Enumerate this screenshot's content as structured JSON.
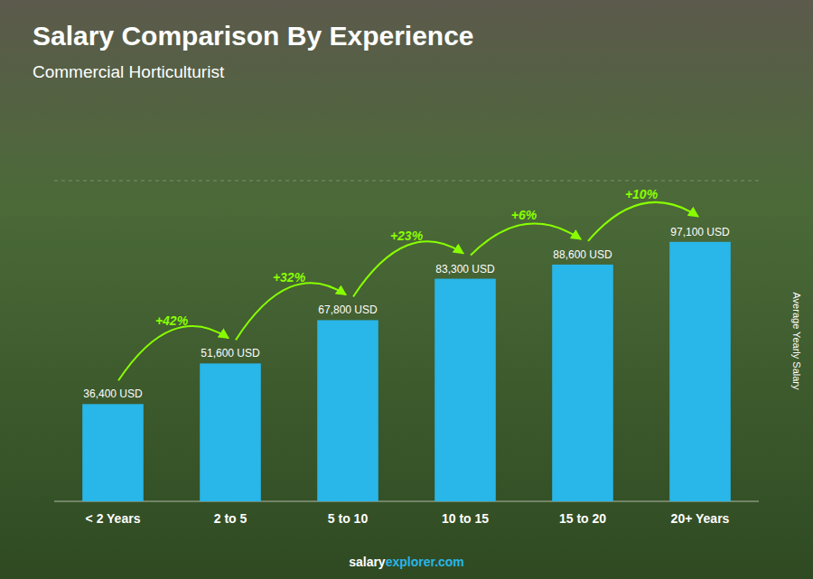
{
  "chart_data": {
    "type": "bar",
    "title": "Salary Comparison By Experience",
    "subtitle": "Commercial Horticulturist",
    "ylabel": "Average Yearly Salary",
    "categories": [
      "< 2 Years",
      "2 to 5",
      "5 to 10",
      "10 to 15",
      "15 to 20",
      "20+ Years"
    ],
    "values": [
      36400,
      51600,
      67800,
      83300,
      88600,
      97100
    ],
    "value_labels": [
      "36,400 USD",
      "51,600 USD",
      "67,800 USD",
      "83,300 USD",
      "88,600 USD",
      "97,100 USD"
    ],
    "data_labels": true,
    "annotations": [
      "+42%",
      "+32%",
      "+23%",
      "+6%",
      "+10%"
    ],
    "source": [
      "salary",
      "explorer.com"
    ],
    "color": "#29b6e8",
    "ylim": [
      0,
      120000
    ],
    "tick_labels": "x",
    "grid": false
  }
}
